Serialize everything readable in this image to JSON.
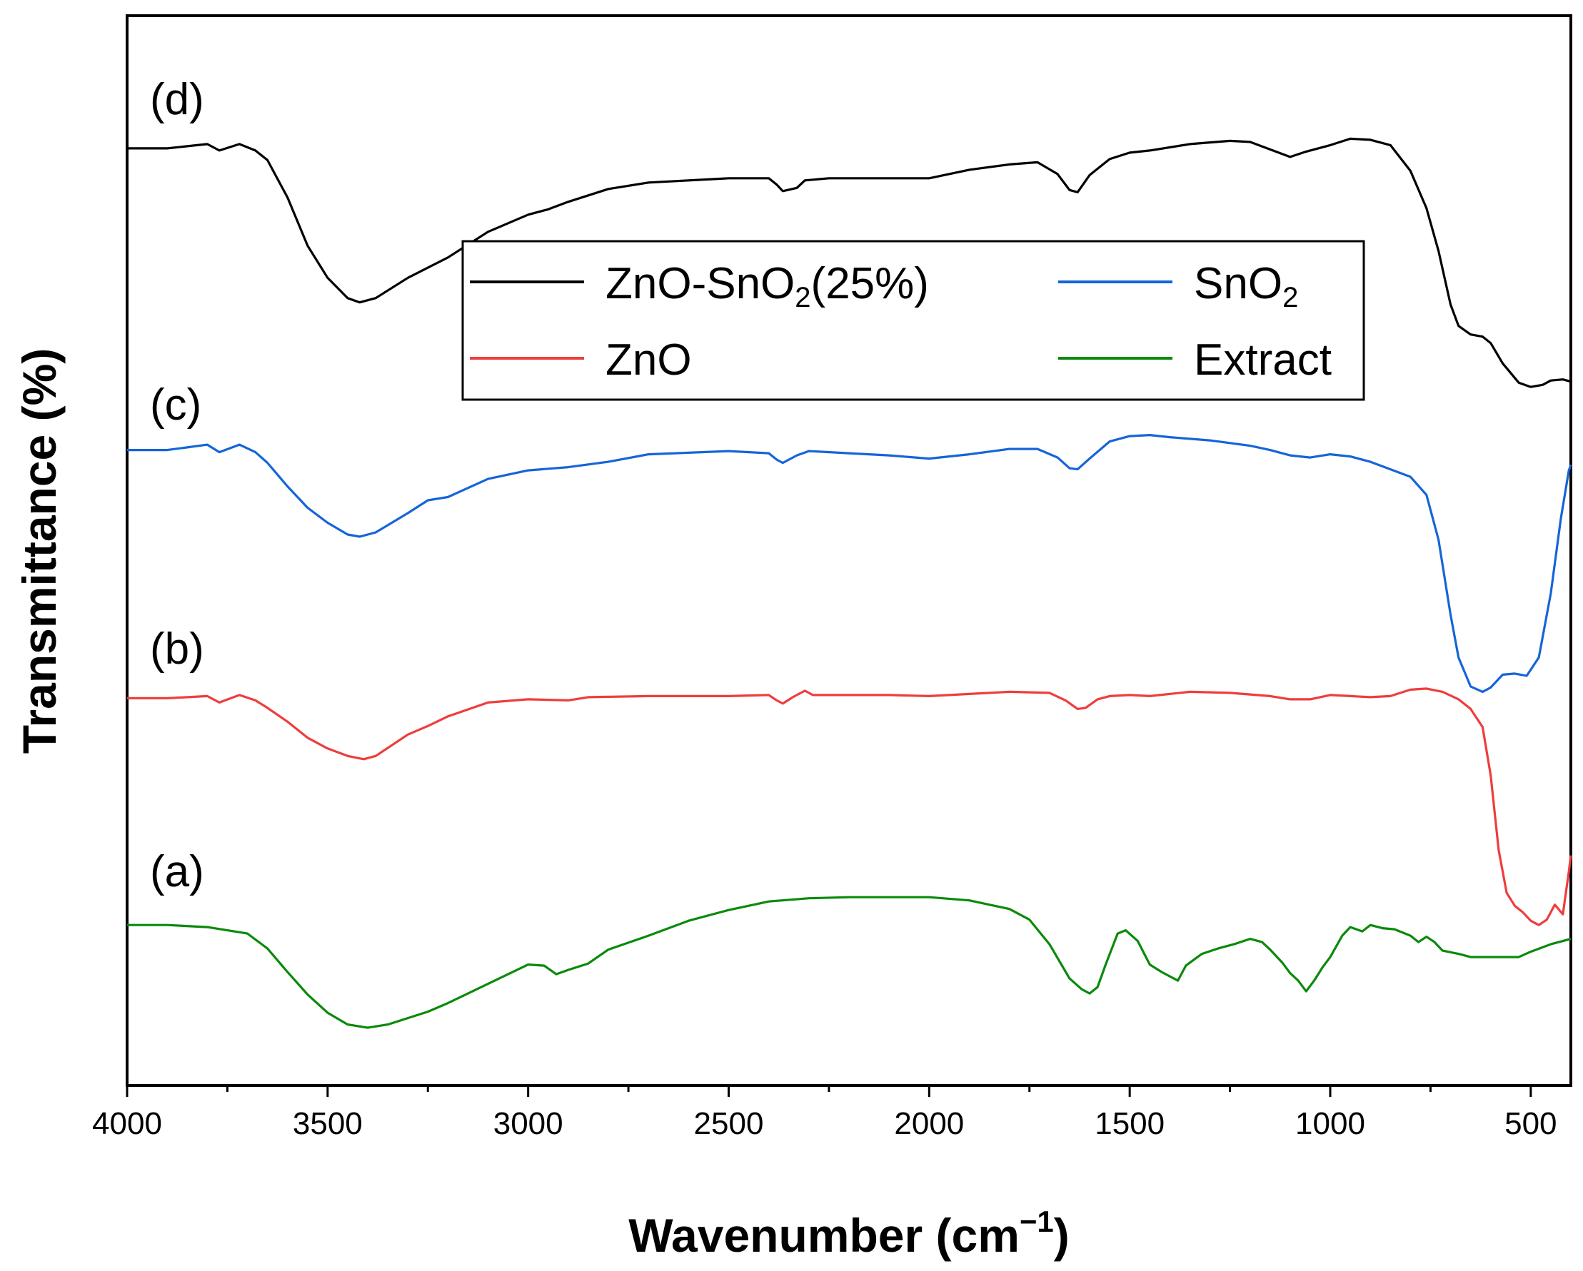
{
  "chart_data": {
    "type": "line",
    "title": "",
    "xlabel": "Wavenumber (cm",
    "xlabel_sup": "−1",
    "xlabel_end": ")",
    "ylabel": "Transmittance (%)",
    "xlim": [
      4000,
      400
    ],
    "x_ticks": [
      "4000",
      "3500",
      "3000",
      "2500",
      "2000",
      "1500",
      "1000",
      "500"
    ],
    "ylim": [
      0,
      100
    ],
    "y_ticks_shown": false,
    "legend_position": "upper-center",
    "series": [
      {
        "name": "ZnO-SnO2(25%)",
        "legend_main": "ZnO-SnO",
        "legend_sub": "2",
        "legend_tail": "(25%)",
        "curve_label": "(d)",
        "color": "#000000",
        "points": [
          [
            4000,
            87.6
          ],
          [
            3900,
            87.6
          ],
          [
            3800,
            88.0
          ],
          [
            3770,
            87.4
          ],
          [
            3720,
            88.0
          ],
          [
            3680,
            87.4
          ],
          [
            3650,
            86.5
          ],
          [
            3600,
            83.0
          ],
          [
            3550,
            78.5
          ],
          [
            3500,
            75.5
          ],
          [
            3450,
            73.6
          ],
          [
            3420,
            73.2
          ],
          [
            3380,
            73.6
          ],
          [
            3300,
            75.5
          ],
          [
            3200,
            77.4
          ],
          [
            3100,
            79.8
          ],
          [
            3000,
            81.4
          ],
          [
            2950,
            81.9
          ],
          [
            2900,
            82.6
          ],
          [
            2800,
            83.8
          ],
          [
            2700,
            84.4
          ],
          [
            2500,
            84.8
          ],
          [
            2400,
            84.8
          ],
          [
            2380,
            84.2
          ],
          [
            2365,
            83.6
          ],
          [
            2330,
            83.9
          ],
          [
            2310,
            84.6
          ],
          [
            2250,
            84.8
          ],
          [
            2100,
            84.8
          ],
          [
            2000,
            84.8
          ],
          [
            1900,
            85.6
          ],
          [
            1800,
            86.1
          ],
          [
            1730,
            86.3
          ],
          [
            1680,
            85.2
          ],
          [
            1650,
            83.7
          ],
          [
            1630,
            83.5
          ],
          [
            1600,
            85.1
          ],
          [
            1550,
            86.6
          ],
          [
            1500,
            87.2
          ],
          [
            1450,
            87.4
          ],
          [
            1350,
            88.0
          ],
          [
            1250,
            88.3
          ],
          [
            1200,
            88.2
          ],
          [
            1150,
            87.5
          ],
          [
            1100,
            86.8
          ],
          [
            1060,
            87.3
          ],
          [
            1000,
            87.9
          ],
          [
            950,
            88.5
          ],
          [
            900,
            88.4
          ],
          [
            850,
            87.9
          ],
          [
            800,
            85.5
          ],
          [
            760,
            82.0
          ],
          [
            730,
            78.0
          ],
          [
            700,
            73.0
          ],
          [
            680,
            71.0
          ],
          [
            650,
            70.2
          ],
          [
            620,
            70.0
          ],
          [
            600,
            69.4
          ],
          [
            570,
            67.5
          ],
          [
            530,
            65.7
          ],
          [
            500,
            65.3
          ],
          [
            470,
            65.5
          ],
          [
            450,
            65.9
          ],
          [
            420,
            66.0
          ],
          [
            400,
            65.8
          ]
        ]
      },
      {
        "name": "SnO2",
        "legend_main": "SnO",
        "legend_sub": "2",
        "legend_tail": "",
        "curve_label": "(c)",
        "color": "#1565d8",
        "points": [
          [
            4000,
            59.4
          ],
          [
            3900,
            59.4
          ],
          [
            3800,
            59.9
          ],
          [
            3770,
            59.2
          ],
          [
            3720,
            59.9
          ],
          [
            3680,
            59.2
          ],
          [
            3650,
            58.2
          ],
          [
            3600,
            56.0
          ],
          [
            3550,
            54.0
          ],
          [
            3500,
            52.6
          ],
          [
            3450,
            51.5
          ],
          [
            3420,
            51.3
          ],
          [
            3380,
            51.7
          ],
          [
            3300,
            53.5
          ],
          [
            3250,
            54.7
          ],
          [
            3200,
            55.0
          ],
          [
            3100,
            56.7
          ],
          [
            3000,
            57.5
          ],
          [
            2900,
            57.8
          ],
          [
            2800,
            58.3
          ],
          [
            2700,
            59.0
          ],
          [
            2500,
            59.3
          ],
          [
            2400,
            59.1
          ],
          [
            2380,
            58.5
          ],
          [
            2365,
            58.2
          ],
          [
            2330,
            58.9
          ],
          [
            2300,
            59.3
          ],
          [
            2200,
            59.1
          ],
          [
            2100,
            58.9
          ],
          [
            2000,
            58.6
          ],
          [
            1900,
            59.0
          ],
          [
            1800,
            59.5
          ],
          [
            1730,
            59.5
          ],
          [
            1680,
            58.7
          ],
          [
            1650,
            57.7
          ],
          [
            1630,
            57.6
          ],
          [
            1600,
            58.6
          ],
          [
            1550,
            60.2
          ],
          [
            1500,
            60.7
          ],
          [
            1450,
            60.8
          ],
          [
            1400,
            60.6
          ],
          [
            1300,
            60.3
          ],
          [
            1200,
            59.8
          ],
          [
            1150,
            59.4
          ],
          [
            1100,
            58.9
          ],
          [
            1050,
            58.7
          ],
          [
            1000,
            59.0
          ],
          [
            950,
            58.8
          ],
          [
            900,
            58.3
          ],
          [
            850,
            57.6
          ],
          [
            800,
            56.9
          ],
          [
            760,
            55.2
          ],
          [
            730,
            51.0
          ],
          [
            700,
            44.0
          ],
          [
            680,
            40.0
          ],
          [
            650,
            37.3
          ],
          [
            620,
            36.8
          ],
          [
            600,
            37.2
          ],
          [
            570,
            38.4
          ],
          [
            540,
            38.5
          ],
          [
            510,
            38.3
          ],
          [
            480,
            40.0
          ],
          [
            450,
            46.0
          ],
          [
            425,
            53.0
          ],
          [
            405,
            57.5
          ],
          [
            400,
            58.0
          ]
        ]
      },
      {
        "name": "ZnO",
        "legend_main": "ZnO",
        "legend_sub": "",
        "legend_tail": "",
        "curve_label": "(b)",
        "color": "#ee3d3d",
        "points": [
          [
            4000,
            36.2
          ],
          [
            3900,
            36.2
          ],
          [
            3800,
            36.4
          ],
          [
            3770,
            35.8
          ],
          [
            3720,
            36.5
          ],
          [
            3680,
            36.0
          ],
          [
            3650,
            35.3
          ],
          [
            3600,
            34.0
          ],
          [
            3550,
            32.5
          ],
          [
            3500,
            31.5
          ],
          [
            3450,
            30.8
          ],
          [
            3410,
            30.5
          ],
          [
            3380,
            30.8
          ],
          [
            3300,
            32.8
          ],
          [
            3250,
            33.6
          ],
          [
            3200,
            34.5
          ],
          [
            3100,
            35.8
          ],
          [
            3000,
            36.1
          ],
          [
            2900,
            36.0
          ],
          [
            2850,
            36.3
          ],
          [
            2700,
            36.4
          ],
          [
            2500,
            36.4
          ],
          [
            2400,
            36.5
          ],
          [
            2380,
            36.0
          ],
          [
            2365,
            35.7
          ],
          [
            2340,
            36.3
          ],
          [
            2310,
            36.9
          ],
          [
            2290,
            36.5
          ],
          [
            2200,
            36.5
          ],
          [
            2100,
            36.5
          ],
          [
            2000,
            36.4
          ],
          [
            1900,
            36.6
          ],
          [
            1800,
            36.8
          ],
          [
            1700,
            36.7
          ],
          [
            1660,
            36.0
          ],
          [
            1630,
            35.2
          ],
          [
            1610,
            35.3
          ],
          [
            1580,
            36.1
          ],
          [
            1550,
            36.4
          ],
          [
            1500,
            36.5
          ],
          [
            1450,
            36.4
          ],
          [
            1350,
            36.8
          ],
          [
            1250,
            36.7
          ],
          [
            1150,
            36.4
          ],
          [
            1100,
            36.1
          ],
          [
            1050,
            36.1
          ],
          [
            1000,
            36.5
          ],
          [
            950,
            36.4
          ],
          [
            900,
            36.3
          ],
          [
            850,
            36.4
          ],
          [
            800,
            37.0
          ],
          [
            760,
            37.1
          ],
          [
            720,
            36.8
          ],
          [
            680,
            36.1
          ],
          [
            650,
            35.2
          ],
          [
            620,
            33.5
          ],
          [
            600,
            29.0
          ],
          [
            580,
            22.0
          ],
          [
            560,
            18.0
          ],
          [
            540,
            16.8
          ],
          [
            520,
            16.2
          ],
          [
            500,
            15.4
          ],
          [
            480,
            15.0
          ],
          [
            460,
            15.5
          ],
          [
            440,
            16.9
          ],
          [
            420,
            16.0
          ],
          [
            405,
            20.0
          ],
          [
            400,
            21.5
          ]
        ]
      },
      {
        "name": "Extract",
        "legend_main": "Extract",
        "legend_sub": "",
        "legend_tail": "",
        "curve_label": "(a)",
        "color": "#0a8a0a",
        "points": [
          [
            4000,
            15.0
          ],
          [
            3900,
            15.0
          ],
          [
            3800,
            14.8
          ],
          [
            3700,
            14.2
          ],
          [
            3650,
            12.8
          ],
          [
            3600,
            10.6
          ],
          [
            3550,
            8.5
          ],
          [
            3500,
            6.8
          ],
          [
            3450,
            5.7
          ],
          [
            3400,
            5.4
          ],
          [
            3350,
            5.7
          ],
          [
            3300,
            6.3
          ],
          [
            3250,
            6.9
          ],
          [
            3200,
            7.7
          ],
          [
            3100,
            9.5
          ],
          [
            3000,
            11.3
          ],
          [
            2960,
            11.2
          ],
          [
            2930,
            10.4
          ],
          [
            2900,
            10.8
          ],
          [
            2850,
            11.4
          ],
          [
            2800,
            12.7
          ],
          [
            2700,
            14.0
          ],
          [
            2600,
            15.4
          ],
          [
            2500,
            16.4
          ],
          [
            2400,
            17.2
          ],
          [
            2300,
            17.5
          ],
          [
            2200,
            17.6
          ],
          [
            2100,
            17.6
          ],
          [
            2000,
            17.6
          ],
          [
            1900,
            17.3
          ],
          [
            1800,
            16.5
          ],
          [
            1750,
            15.5
          ],
          [
            1700,
            13.2
          ],
          [
            1650,
            10.0
          ],
          [
            1620,
            9.0
          ],
          [
            1600,
            8.6
          ],
          [
            1580,
            9.2
          ],
          [
            1560,
            11.3
          ],
          [
            1530,
            14.2
          ],
          [
            1510,
            14.5
          ],
          [
            1480,
            13.5
          ],
          [
            1450,
            11.3
          ],
          [
            1420,
            10.6
          ],
          [
            1400,
            10.2
          ],
          [
            1380,
            9.8
          ],
          [
            1360,
            11.2
          ],
          [
            1320,
            12.3
          ],
          [
            1280,
            12.8
          ],
          [
            1240,
            13.2
          ],
          [
            1200,
            13.7
          ],
          [
            1170,
            13.4
          ],
          [
            1150,
            12.7
          ],
          [
            1120,
            11.5
          ],
          [
            1100,
            10.5
          ],
          [
            1080,
            9.8
          ],
          [
            1060,
            8.8
          ],
          [
            1040,
            9.8
          ],
          [
            1020,
            11.0
          ],
          [
            1000,
            12.0
          ],
          [
            970,
            14.0
          ],
          [
            950,
            14.8
          ],
          [
            920,
            14.4
          ],
          [
            900,
            15.0
          ],
          [
            870,
            14.7
          ],
          [
            840,
            14.6
          ],
          [
            800,
            14.0
          ],
          [
            780,
            13.4
          ],
          [
            760,
            13.9
          ],
          [
            740,
            13.4
          ],
          [
            720,
            12.6
          ],
          [
            680,
            12.3
          ],
          [
            650,
            12.0
          ],
          [
            600,
            12.0
          ],
          [
            560,
            12.0
          ],
          [
            530,
            12.0
          ],
          [
            500,
            12.5
          ],
          [
            450,
            13.2
          ],
          [
            420,
            13.5
          ],
          [
            400,
            13.7
          ]
        ]
      }
    ]
  }
}
